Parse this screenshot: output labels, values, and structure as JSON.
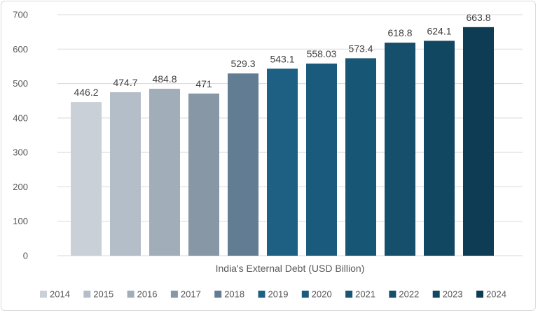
{
  "chart_data": {
    "type": "bar",
    "title": "",
    "xlabel": "India's External Debt (USD Billion)",
    "ylabel": "",
    "ylim": [
      0,
      700
    ],
    "yticks": [
      0,
      100,
      200,
      300,
      400,
      500,
      600,
      700
    ],
    "grid": true,
    "legend_position": "bottom",
    "series": [
      {
        "name": "2014",
        "value": 446.2,
        "label": "446.2",
        "color": "#c9d0d8"
      },
      {
        "name": "2015",
        "value": 474.7,
        "label": "474.7",
        "color": "#b4bec8"
      },
      {
        "name": "2016",
        "value": 484.8,
        "label": "484.8",
        "color": "#a1adb9"
      },
      {
        "name": "2017",
        "value": 471,
        "label": "471",
        "color": "#8797a6"
      },
      {
        "name": "2018",
        "value": 529.3,
        "label": "529.3",
        "color": "#627d93"
      },
      {
        "name": "2019",
        "value": 543.1,
        "label": "543.1",
        "color": "#1d6084"
      },
      {
        "name": "2020",
        "value": 558.03,
        "label": "558.03",
        "color": "#1a5b7d"
      },
      {
        "name": "2021",
        "value": 573.4,
        "label": "573.4",
        "color": "#185675"
      },
      {
        "name": "2022",
        "value": 618.8,
        "label": "618.8",
        "color": "#154f6c"
      },
      {
        "name": "2023",
        "value": 624.1,
        "label": "624.1",
        "color": "#124762"
      },
      {
        "name": "2024",
        "value": 663.8,
        "label": "663.8",
        "color": "#0e3c55"
      }
    ]
  }
}
